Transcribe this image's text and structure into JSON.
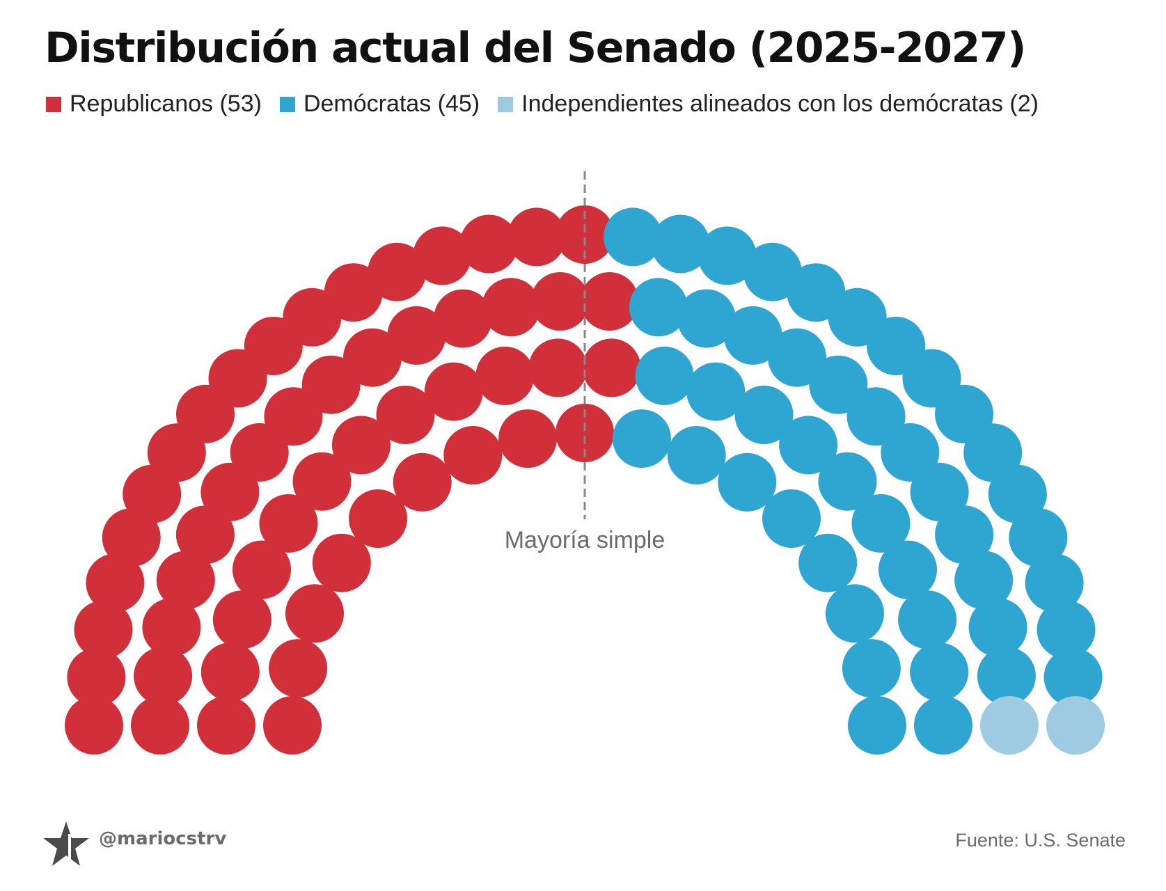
{
  "title": "Distribución actual del Senado (2025-2027)",
  "legend": [
    {
      "label": "Republicanos (53)",
      "color": "#d12f3a"
    },
    {
      "label": "Demócratas (45)",
      "color": "#2fa5d1"
    },
    {
      "label": "Independientes alineados con los demócratas (2)",
      "color": "#9ecbe2"
    }
  ],
  "chart_data": {
    "type": "parliament",
    "title": "Distribución actual del Senado (2025-2027)",
    "total_seats": 100,
    "series": [
      {
        "name": "Republicanos",
        "value": 53,
        "color": "#d12f3a"
      },
      {
        "name": "Demócratas",
        "value": 45,
        "color": "#2fa5d1"
      },
      {
        "name": "Independientes alineados con los demócratas",
        "value": 2,
        "color": "#9ecbe2"
      }
    ],
    "majority_line_label": "Mayoría simple"
  },
  "footer": {
    "handle": "@mariocstrv",
    "source": "Fuente: U.S. Senate",
    "logo_icon": "star-logo-icon"
  }
}
